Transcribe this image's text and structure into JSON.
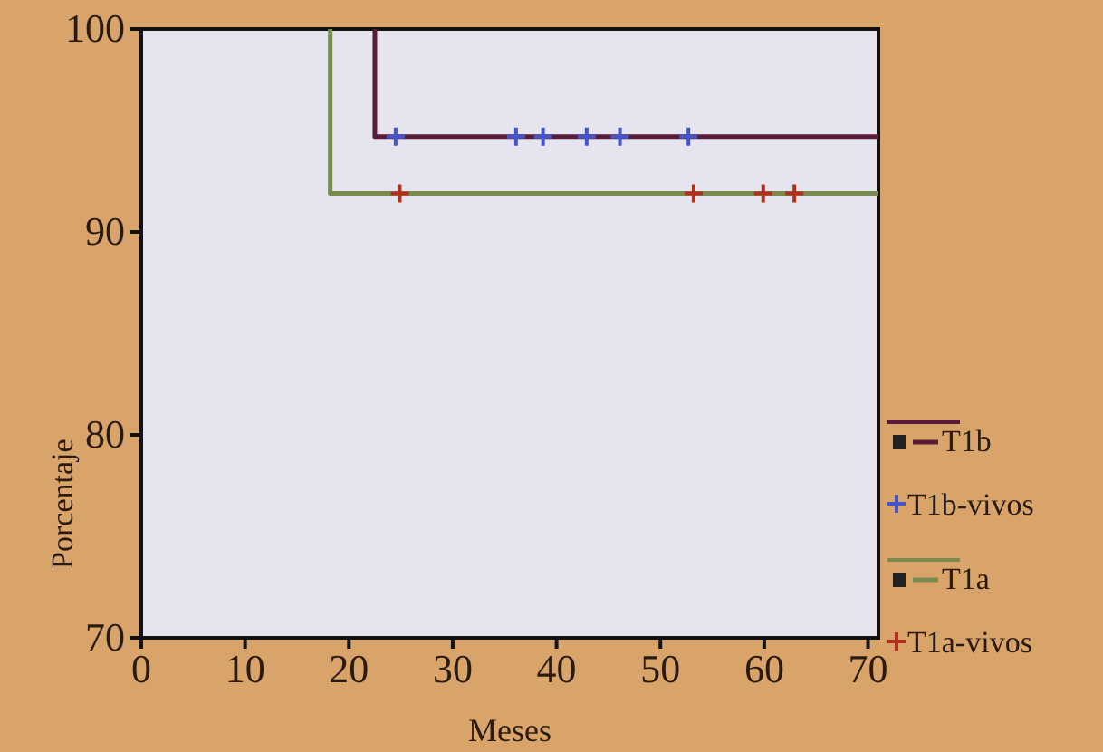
{
  "chart_data": {
    "type": "line",
    "xlabel": "Meses",
    "ylabel": "Porcentaje",
    "xlim": [
      0,
      71
    ],
    "ylim": [
      70,
      100
    ],
    "xticks": [
      0,
      10,
      20,
      30,
      40,
      50,
      60,
      70
    ],
    "yticks": [
      70,
      80,
      90,
      100
    ],
    "grid": false,
    "legend": "right",
    "line_style": "solid",
    "series": [
      {
        "name": "T1b",
        "marker": "none",
        "color": "#5a1a3a",
        "x": [
          22.5,
          22.5,
          71
        ],
        "values": [
          100,
          94.7,
          94.7
        ]
      },
      {
        "name": "T1b-vivos",
        "type": "scatter",
        "marker": "cross",
        "color": "#4455cc",
        "x": [
          24.5,
          36.1,
          38.7,
          42.9,
          46.1,
          52.7
        ],
        "values": [
          94.7,
          94.7,
          94.7,
          94.7,
          94.7,
          94.7
        ]
      },
      {
        "name": "T1a",
        "marker": "none",
        "color": "#7a8a50",
        "x": [
          18.2,
          18.2,
          71
        ],
        "values": [
          100,
          91.9,
          91.9
        ]
      },
      {
        "name": "T1a-vivos",
        "type": "scatter",
        "marker": "cross",
        "color": "#b03020",
        "x": [
          24.9,
          53.2,
          59.9,
          62.9
        ],
        "values": [
          91.9,
          91.9,
          91.9,
          91.9
        ]
      }
    ]
  }
}
